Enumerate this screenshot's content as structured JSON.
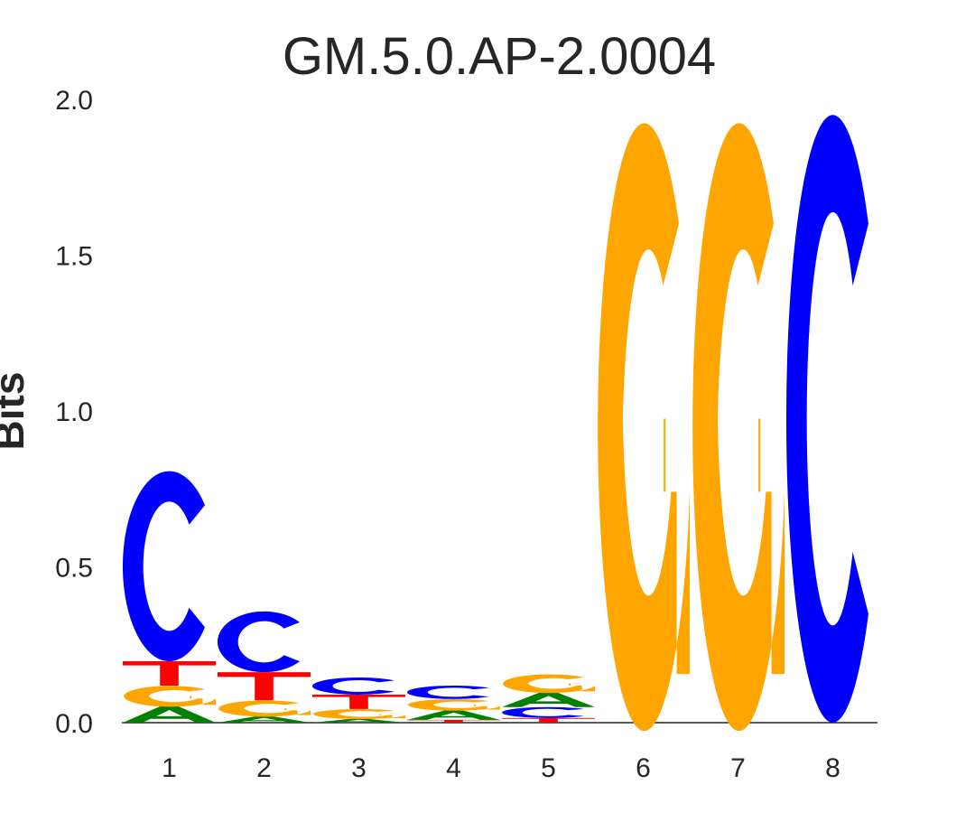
{
  "chart_data": {
    "type": "sequence-logo",
    "title": "GM.5.0.AP-2.0004",
    "xlabel": "",
    "ylabel": "Bits",
    "ylim": [
      0,
      2.0
    ],
    "yticks": [
      "0.0",
      "0.5",
      "1.0",
      "1.5",
      "2.0"
    ],
    "ytick_values": [
      0,
      0.5,
      1.0,
      1.5,
      2.0
    ],
    "categories": [
      "1",
      "2",
      "3",
      "4",
      "5",
      "6",
      "7",
      "8"
    ],
    "colors": {
      "A": "#008000",
      "C": "#0000ff",
      "G": "#ffa500",
      "T": "#ff0000"
    },
    "positions": [
      [
        {
          "base": "A",
          "bits": 0.052
        },
        {
          "base": "G",
          "bits": 0.067
        },
        {
          "base": "T",
          "bits": 0.078
        },
        {
          "base": "C",
          "bits": 0.61
        }
      ],
      [
        {
          "base": "A",
          "bits": 0.02
        },
        {
          "base": "G",
          "bits": 0.052
        },
        {
          "base": "T",
          "bits": 0.09
        },
        {
          "base": "C",
          "bits": 0.195
        }
      ],
      [
        {
          "base": "A",
          "bits": 0.012
        },
        {
          "base": "G",
          "bits": 0.032
        },
        {
          "base": "T",
          "bits": 0.046
        },
        {
          "base": "C",
          "bits": 0.055
        }
      ],
      [
        {
          "base": "T",
          "bits": 0.009
        },
        {
          "base": "A",
          "bits": 0.03
        },
        {
          "base": "G",
          "bits": 0.037
        },
        {
          "base": "C",
          "bits": 0.043
        }
      ],
      [
        {
          "base": "T",
          "bits": 0.015
        },
        {
          "base": "C",
          "bits": 0.035
        },
        {
          "base": "A",
          "bits": 0.046
        },
        {
          "base": "G",
          "bits": 0.06
        }
      ],
      [
        {
          "base": "G",
          "bits": 1.95
        }
      ],
      [
        {
          "base": "G",
          "bits": 1.95
        }
      ],
      [
        {
          "base": "C",
          "bits": 1.95
        }
      ]
    ]
  }
}
